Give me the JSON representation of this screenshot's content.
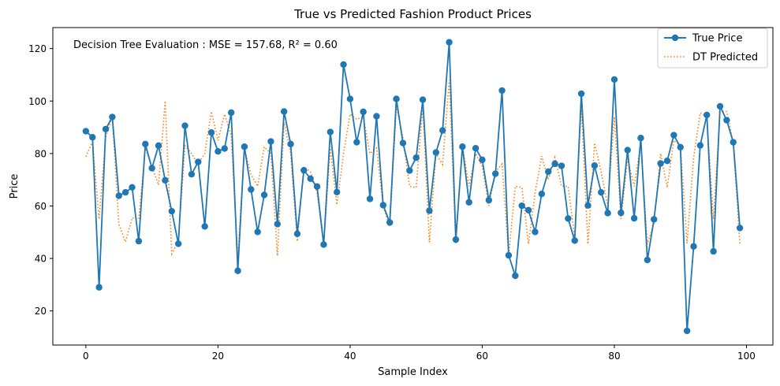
{
  "chart_data": {
    "type": "line",
    "title": "True vs Predicted Fashion Product Prices",
    "xlabel": "Sample Index",
    "ylabel": "Price",
    "xlim": [
      -5,
      104
    ],
    "ylim": [
      7,
      128
    ],
    "xticks": [
      0,
      20,
      40,
      60,
      80,
      100
    ],
    "yticks": [
      20,
      40,
      60,
      80,
      100,
      120
    ],
    "grid": false,
    "legend_position": "top-right",
    "annotation": "Decision Tree Evaluation : MSE = 157.68, R² = 0.60",
    "colors": {
      "true": "#1f77b4",
      "pred": "#ff7f0e"
    },
    "series": [
      {
        "name": "True Price",
        "style": "solid-line-with-circle-markers",
        "values": [
          88.5,
          86.2,
          29,
          89.3,
          93.9,
          63.9,
          65.2,
          67.1,
          46.6,
          83.6,
          74.4,
          83,
          69.8,
          58,
          45.6,
          90.6,
          72.1,
          76.8,
          52.2,
          88,
          80.8,
          81.9,
          95.6,
          35.3,
          82.6,
          66.3,
          50.1,
          64.2,
          84.6,
          53.1,
          96,
          83.6,
          49.4,
          73.6,
          70.4,
          67.4,
          45.3,
          88.2,
          65.3,
          113.9,
          100.8,
          84.3,
          95.9,
          62.7,
          94.2,
          60.3,
          53.7,
          100.8,
          84,
          73.5,
          78.4,
          100.5,
          58.2,
          80.4,
          88.8,
          122.4,
          47.2,
          82.6,
          61.4,
          82,
          77.6,
          62.2,
          72.3,
          104,
          41.2,
          33.4,
          60.1,
          58.4,
          50.1,
          64.6,
          73.1,
          76.1,
          75.3,
          55.2,
          46.8,
          102.8,
          60.2,
          75.4,
          65.2,
          57.3,
          108.2,
          57.4,
          81.3,
          55.3,
          85.9,
          39.4,
          54.9,
          76.2,
          77.2,
          87,
          82.4,
          12.4,
          44.6,
          83.1,
          94.7,
          42.7,
          98,
          92.7,
          84.3,
          51.6
        ]
      },
      {
        "name": "DT Predicted",
        "style": "dotted-line",
        "values": [
          78.8,
          84.5,
          55,
          86,
          94,
          53,
          46.3,
          55.5,
          55,
          82,
          75,
          68,
          100,
          41.8,
          46.5,
          83,
          80,
          76,
          80,
          96,
          85,
          95,
          87,
          40,
          82,
          72,
          67.5,
          82.5,
          80,
          41,
          92,
          80,
          46.5,
          75,
          73,
          65,
          45,
          82,
          60.5,
          80,
          95,
          93,
          94,
          80,
          82,
          60,
          52,
          98,
          86,
          67.5,
          67,
          98,
          46.2,
          80,
          75.8,
          108,
          45.8,
          83,
          67.5,
          80,
          75,
          60,
          73,
          76,
          41,
          67.5,
          67,
          45.5,
          65,
          79,
          70,
          78.5,
          67.5,
          67.5,
          48,
          98,
          45.5,
          84,
          73,
          60,
          94,
          55,
          78,
          67.5,
          84,
          45.5,
          53.5,
          80,
          67,
          85,
          83,
          45.8,
          78.5,
          95.5,
          94,
          55,
          96,
          96,
          84,
          45.5
        ]
      }
    ]
  }
}
